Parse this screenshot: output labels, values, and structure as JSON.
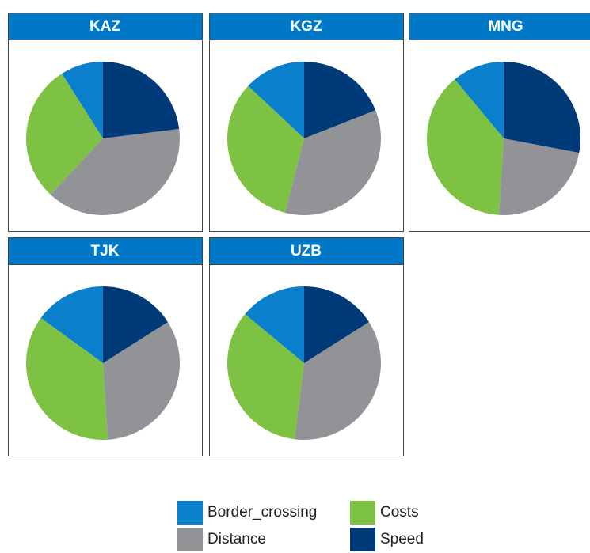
{
  "chart_data": {
    "type": "pie",
    "categories": [
      "Border_crossing",
      "Costs",
      "Distance",
      "Speed"
    ],
    "colors": [
      "#0a7fcc",
      "#7dc242",
      "#929397",
      "#003a78"
    ],
    "panels": [
      {
        "title": "KAZ",
        "values": [
          9,
          29,
          39,
          23
        ]
      },
      {
        "title": "KGZ",
        "values": [
          13,
          33,
          35,
          19
        ]
      },
      {
        "title": "MNG",
        "values": [
          11,
          38,
          23,
          28
        ]
      },
      {
        "title": "TJK",
        "values": [
          15,
          36,
          33,
          16
        ]
      },
      {
        "title": "UZB",
        "values": [
          14,
          34,
          36,
          16
        ]
      }
    ]
  }
}
